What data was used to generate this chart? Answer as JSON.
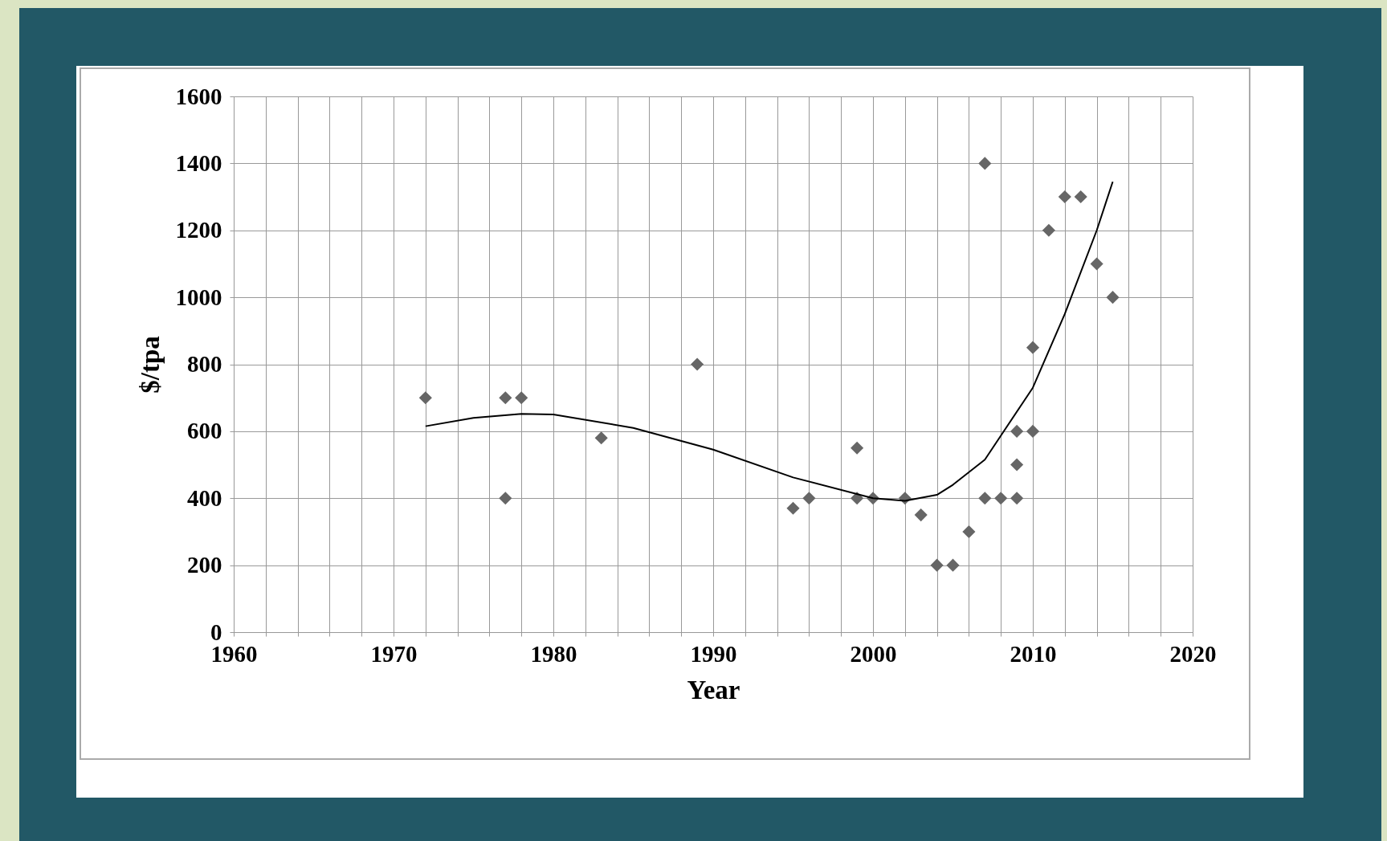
{
  "chart_data": {
    "type": "scatter",
    "xlabel": "Year",
    "ylabel": "$/tpa",
    "xlim": [
      1960,
      2020
    ],
    "ylim": [
      0,
      1600
    ],
    "xticks": [
      1960,
      {
        "value": 1962,
        "label": null
      },
      {
        "value": 1964,
        "label": null
      },
      {
        "value": 1966,
        "label": null
      },
      {
        "value": 1968,
        "label": null
      },
      1970,
      {
        "value": 1972,
        "label": null
      },
      {
        "value": 1974,
        "label": null
      },
      {
        "value": 1976,
        "label": null
      },
      {
        "value": 1978,
        "label": null
      },
      1980,
      {
        "value": 1982,
        "label": null
      },
      {
        "value": 1984,
        "label": null
      },
      {
        "value": 1986,
        "label": null
      },
      {
        "value": 1988,
        "label": null
      },
      1990,
      {
        "value": 1992,
        "label": null
      },
      {
        "value": 1994,
        "label": null
      },
      {
        "value": 1996,
        "label": null
      },
      {
        "value": 1998,
        "label": null
      },
      2000,
      {
        "value": 2002,
        "label": null
      },
      {
        "value": 2004,
        "label": null
      },
      {
        "value": 2006,
        "label": null
      },
      {
        "value": 2008,
        "label": null
      },
      2010,
      {
        "value": 2012,
        "label": null
      },
      {
        "value": 2014,
        "label": null
      },
      {
        "value": 2016,
        "label": null
      },
      {
        "value": 2018,
        "label": null
      },
      2020
    ],
    "yticks": [
      0,
      200,
      400,
      600,
      800,
      1000,
      1200,
      1400,
      1600
    ],
    "grid": true,
    "marker": "diamond",
    "series": [
      {
        "type": "scatter",
        "color": "#666666",
        "x": [
          1972,
          1977,
          1978,
          1977,
          1983,
          1989,
          1995,
          1996,
          1999,
          1999,
          2000,
          2002,
          2003,
          2004,
          2005,
          2006,
          2007,
          2007,
          2008,
          2009,
          2009,
          2009,
          2010,
          2010,
          2011,
          2012,
          2013,
          2014,
          2015
        ],
        "values": [
          700,
          700,
          700,
          400,
          580,
          800,
          370,
          400,
          550,
          400,
          400,
          400,
          350,
          200,
          200,
          300,
          1400,
          400,
          400,
          400,
          500,
          600,
          600,
          850,
          1200,
          1300,
          1300,
          1100,
          1000
        ]
      },
      {
        "type": "line",
        "color": "#000000",
        "marker": "none",
        "line_style": "solid",
        "x": [
          1972,
          1975,
          1978,
          1980,
          1985,
          1990,
          1995,
          2000,
          2002,
          2004,
          2005,
          2007,
          2010,
          2012,
          2014,
          2015
        ],
        "values": [
          615,
          640,
          652,
          650,
          610,
          545,
          462,
          400,
          392,
          410,
          440,
          515,
          730,
          950,
          1200,
          1345
        ]
      }
    ]
  }
}
